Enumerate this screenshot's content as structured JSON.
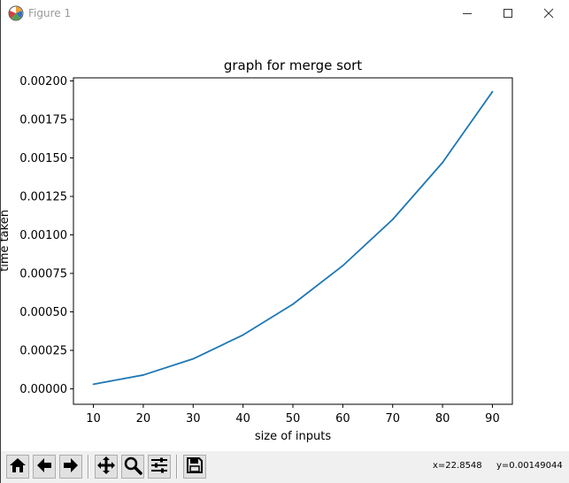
{
  "window": {
    "title": "Figure 1",
    "controls": [
      "minimize",
      "maximize",
      "close"
    ]
  },
  "toolbar": {
    "buttons": [
      {
        "name": "home-icon",
        "tooltip": "Reset original view"
      },
      {
        "name": "back-arrow-icon",
        "tooltip": "Back to previous view"
      },
      {
        "name": "forward-arrow-icon",
        "tooltip": "Forward to next view"
      },
      {
        "name": "pan-icon",
        "tooltip": "Pan axes"
      },
      {
        "name": "zoom-icon",
        "tooltip": "Zoom to rectangle"
      },
      {
        "name": "configure-subplots-icon",
        "tooltip": "Configure subplots"
      },
      {
        "name": "save-icon",
        "tooltip": "Save the figure"
      }
    ],
    "coords": {
      "x": "x=22.8548",
      "y": "y=0.00149044"
    }
  },
  "chart_data": {
    "type": "line",
    "title": "graph for merge sort",
    "xlabel": "size of inputs",
    "ylabel": "time taken",
    "x": [
      10,
      20,
      30,
      40,
      50,
      60,
      70,
      80,
      90
    ],
    "series": [
      {
        "values": [
          3e-05,
          9e-05,
          0.000195,
          0.00035,
          0.00055,
          0.0008,
          0.0011,
          0.00147,
          0.00193
        ],
        "color": "#1f77b4"
      }
    ],
    "xlim": [
      6,
      94
    ],
    "ylim": [
      -0.0001,
      0.00202
    ],
    "xticks": [
      10,
      20,
      30,
      40,
      50,
      60,
      70,
      80,
      90
    ],
    "xtick_labels": [
      "10",
      "20",
      "30",
      "40",
      "50",
      "60",
      "70",
      "80",
      "90"
    ],
    "yticks": [
      0,
      0.00025,
      0.0005,
      0.00075,
      0.001,
      0.00125,
      0.0015,
      0.00175,
      0.002
    ],
    "ytick_labels": [
      "0.00000",
      "0.00025",
      "0.00050",
      "0.00075",
      "0.00100",
      "0.00125",
      "0.00150",
      "0.00175",
      "0.00200"
    ],
    "grid": false,
    "legend": "none"
  }
}
